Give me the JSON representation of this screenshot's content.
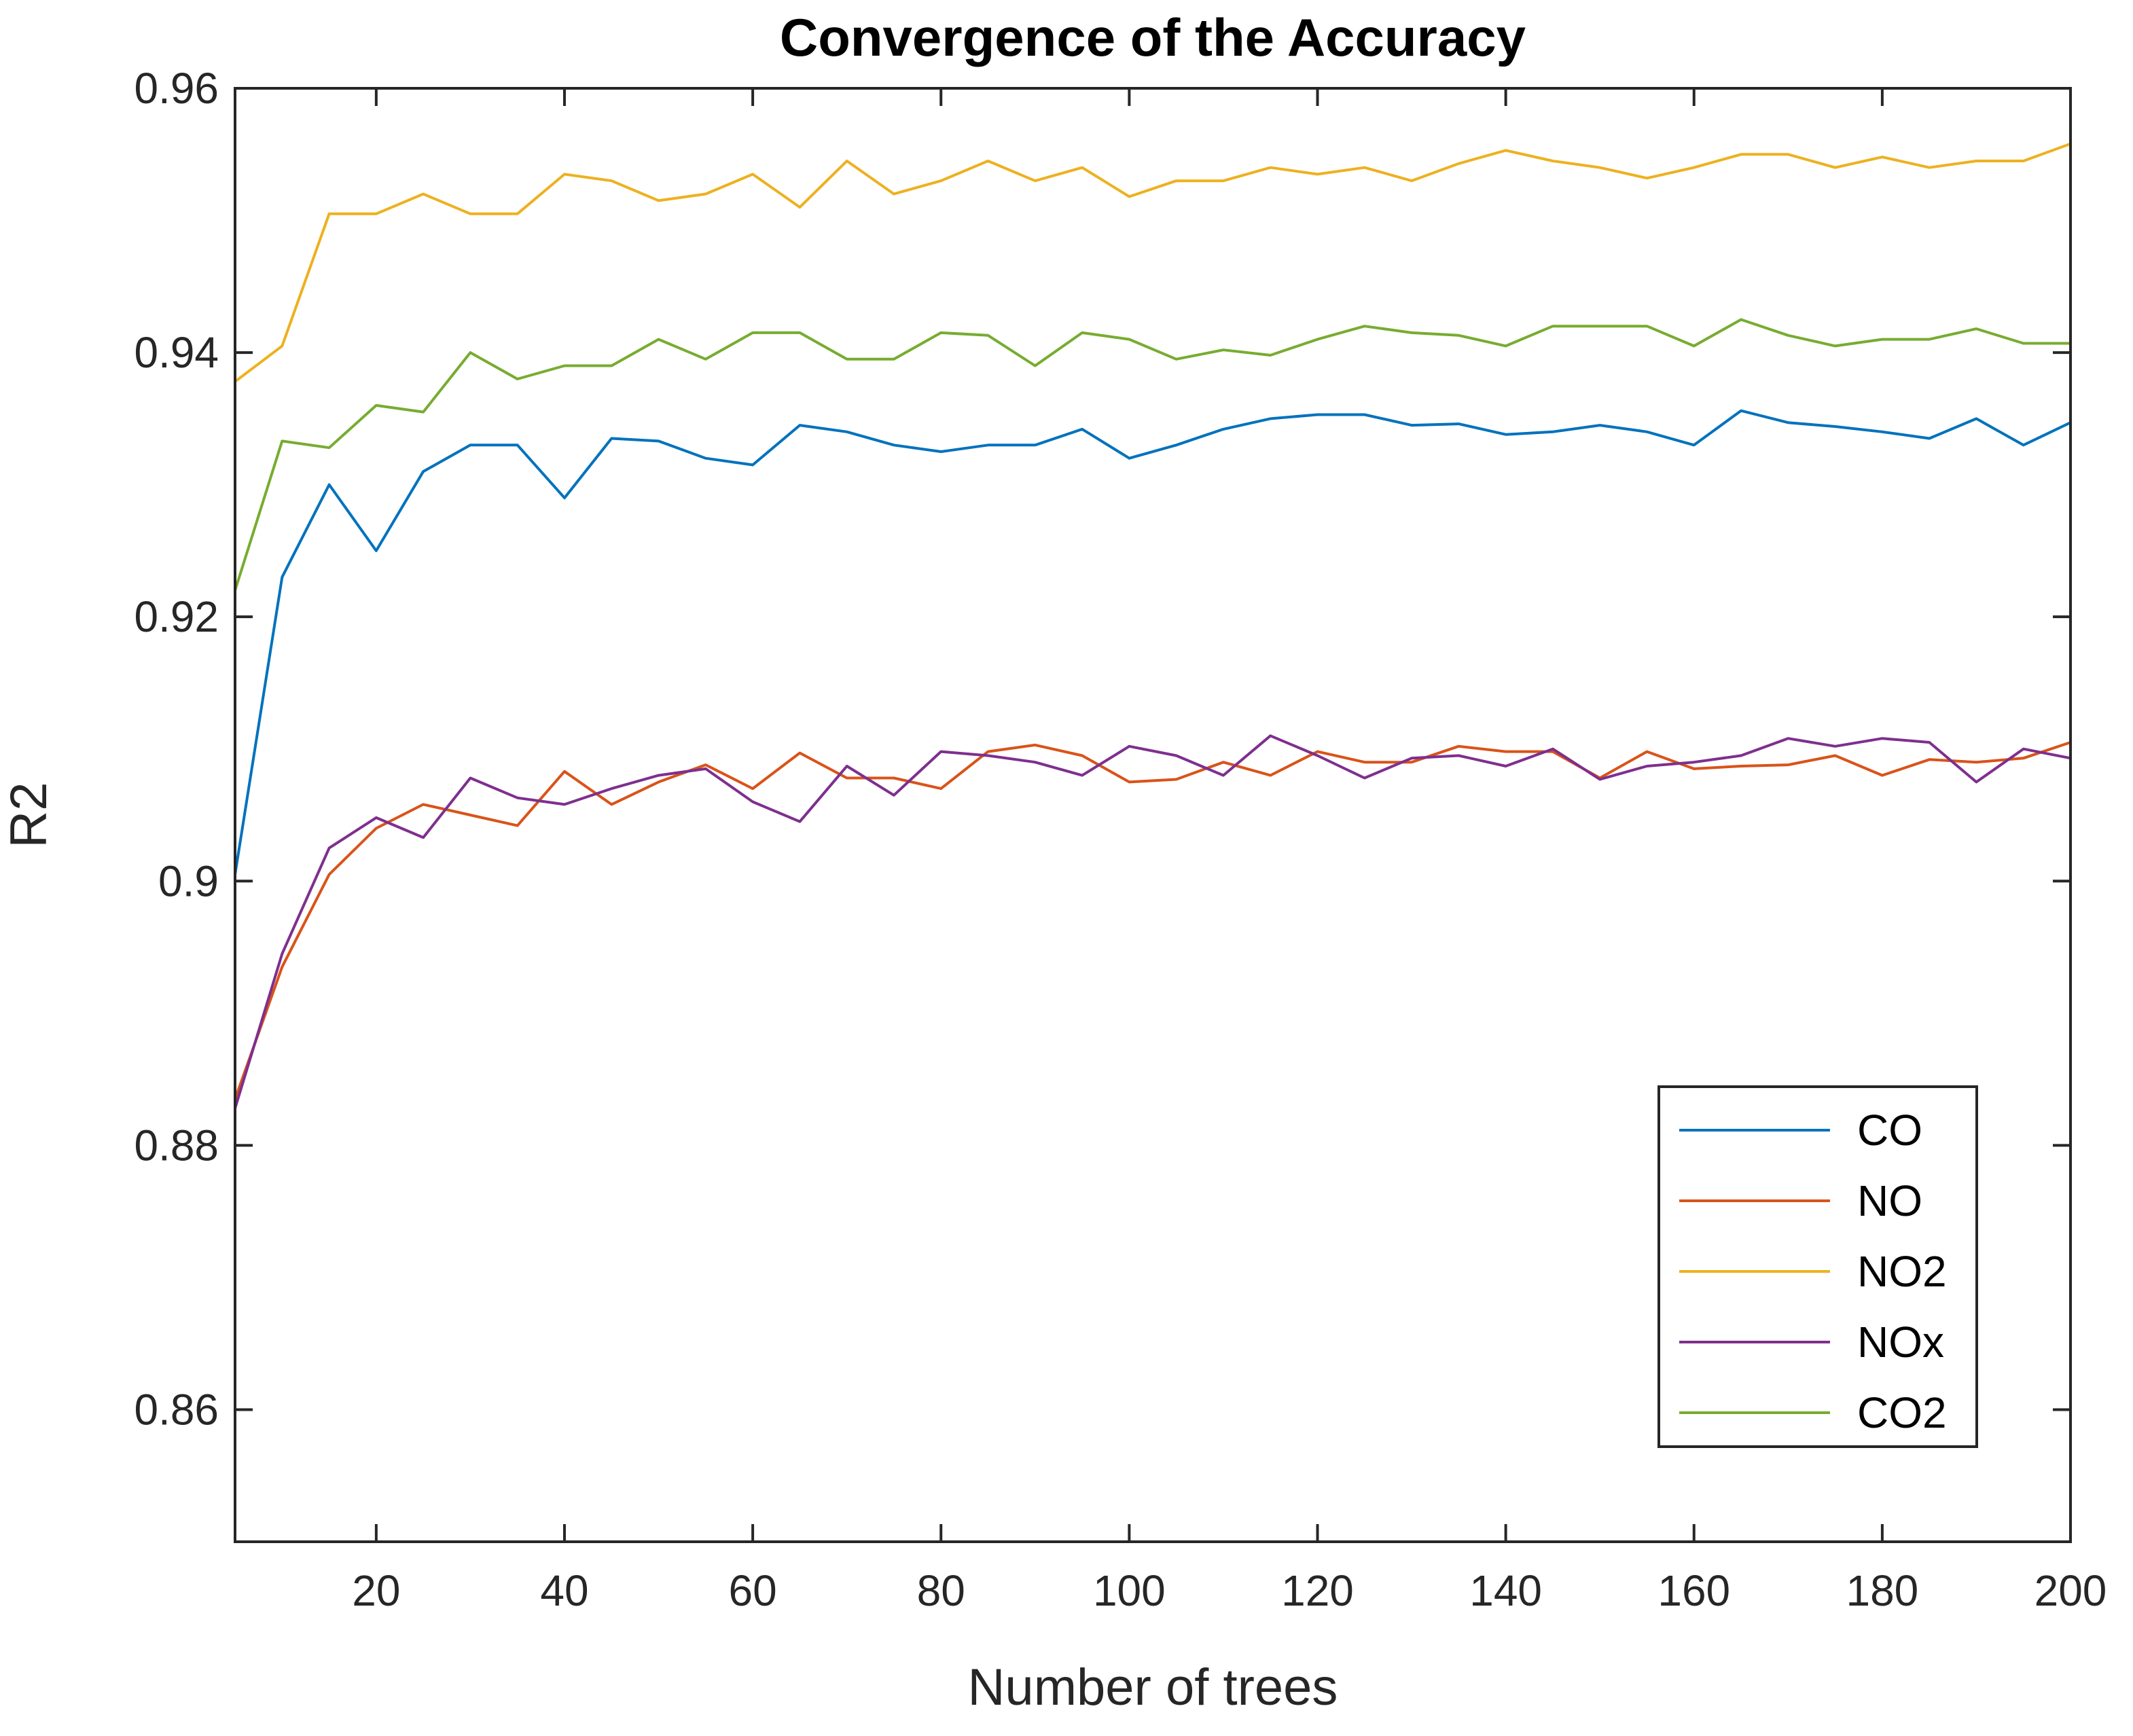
{
  "chart_data": {
    "type": "line",
    "title": "Convergence of the Accuracy",
    "xlabel": "Number of trees",
    "ylabel": "R2",
    "xlim": [
      5,
      200
    ],
    "ylim": [
      0.85,
      0.96
    ],
    "xticks": [
      20,
      40,
      60,
      80,
      100,
      120,
      140,
      160,
      180,
      200
    ],
    "yticks": [
      0.86,
      0.88,
      0.9,
      0.92,
      0.94,
      0.96
    ],
    "xtick_labels": [
      "20",
      "40",
      "60",
      "80",
      "100",
      "120",
      "140",
      "160",
      "180",
      "200"
    ],
    "ytick_labels": [
      "0.86",
      "0.88",
      "0.9",
      "0.92",
      "0.94",
      "0.96"
    ],
    "grid": false,
    "legend_position": "bottom-right",
    "x": [
      5,
      10,
      15,
      20,
      25,
      30,
      35,
      40,
      45,
      50,
      55,
      60,
      65,
      70,
      75,
      80,
      85,
      90,
      95,
      100,
      105,
      110,
      115,
      120,
      125,
      130,
      135,
      140,
      145,
      150,
      155,
      160,
      165,
      170,
      175,
      180,
      185,
      190,
      195,
      200
    ],
    "series": [
      {
        "name": "CO",
        "color": "#0072BD",
        "values": [
          0.9005,
          0.923,
          0.93,
          0.925,
          0.931,
          0.933,
          0.933,
          0.929,
          0.9335,
          0.9333,
          0.932,
          0.9315,
          0.9345,
          0.934,
          0.933,
          0.9325,
          0.933,
          0.933,
          0.9342,
          0.932,
          0.933,
          0.9342,
          0.935,
          0.9353,
          0.9353,
          0.9345,
          0.9346,
          0.9338,
          0.934,
          0.9345,
          0.934,
          0.933,
          0.9356,
          0.9347,
          0.9344,
          0.934,
          0.9335,
          0.935,
          0.933,
          0.9347
        ]
      },
      {
        "name": "NO",
        "color": "#D95319",
        "values": [
          0.8835,
          0.8935,
          0.9005,
          0.904,
          0.9058,
          0.905,
          0.9042,
          0.9083,
          0.9058,
          0.9075,
          0.9088,
          0.907,
          0.9097,
          0.9078,
          0.9078,
          0.907,
          0.9098,
          0.9103,
          0.9095,
          0.9075,
          0.9077,
          0.909,
          0.908,
          0.9098,
          0.909,
          0.909,
          0.9102,
          0.9098,
          0.9098,
          0.9078,
          0.9098,
          0.9085,
          0.9087,
          0.9088,
          0.9095,
          0.908,
          0.9092,
          0.909,
          0.9093,
          0.9105
        ]
      },
      {
        "name": "NO2",
        "color": "#EDB120",
        "values": [
          0.9378,
          0.9405,
          0.9505,
          0.9505,
          0.952,
          0.9505,
          0.9505,
          0.9535,
          0.953,
          0.9515,
          0.952,
          0.9535,
          0.951,
          0.9545,
          0.952,
          0.953,
          0.9545,
          0.953,
          0.954,
          0.9518,
          0.953,
          0.953,
          0.954,
          0.9535,
          0.954,
          0.953,
          0.9543,
          0.9553,
          0.9545,
          0.954,
          0.9532,
          0.954,
          0.955,
          0.955,
          0.954,
          0.9548,
          0.954,
          0.9545,
          0.9545,
          0.9558
        ]
      },
      {
        "name": "NOx",
        "color": "#7E2F8E",
        "values": [
          0.8828,
          0.8945,
          0.9025,
          0.9048,
          0.9033,
          0.9078,
          0.9063,
          0.9058,
          0.907,
          0.908,
          0.9085,
          0.906,
          0.9045,
          0.9087,
          0.9065,
          0.9098,
          0.9095,
          0.909,
          0.908,
          0.9102,
          0.9095,
          0.908,
          0.911,
          0.9095,
          0.9078,
          0.9093,
          0.9095,
          0.9087,
          0.91,
          0.9077,
          0.9087,
          0.909,
          0.9095,
          0.9108,
          0.9102,
          0.9108,
          0.9105,
          0.9075,
          0.91,
          0.9093
        ]
      },
      {
        "name": "CO2",
        "color": "#77AC30",
        "values": [
          0.922,
          0.9333,
          0.9328,
          0.936,
          0.9355,
          0.94,
          0.938,
          0.939,
          0.939,
          0.941,
          0.9395,
          0.9415,
          0.9415,
          0.9395,
          0.9395,
          0.9415,
          0.9413,
          0.939,
          0.9415,
          0.941,
          0.9395,
          0.9402,
          0.9398,
          0.941,
          0.942,
          0.9415,
          0.9413,
          0.9405,
          0.942,
          0.942,
          0.942,
          0.9405,
          0.9425,
          0.9413,
          0.9405,
          0.941,
          0.941,
          0.9418,
          0.9407,
          0.9407
        ]
      }
    ]
  }
}
